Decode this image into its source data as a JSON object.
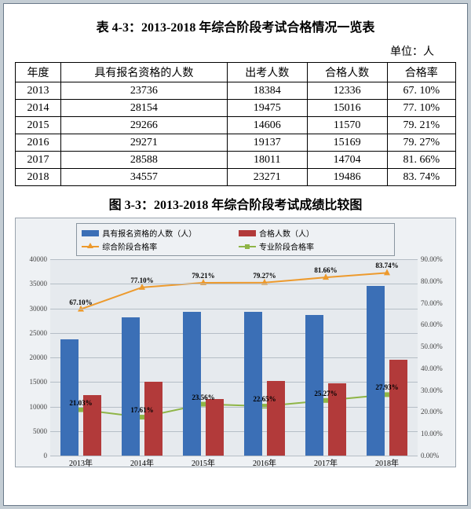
{
  "table_title": "表 4-3：2013-2018 年综合阶段考试合格情况一览表",
  "unit_label": "单位：人",
  "columns": [
    "年度",
    "具有报名资格的人数",
    "出考人数",
    "合格人数",
    "合格率"
  ],
  "rows": [
    [
      "2013",
      "23736",
      "18384",
      "12336",
      "67. 10%"
    ],
    [
      "2014",
      "28154",
      "19475",
      "15016",
      "77. 10%"
    ],
    [
      "2015",
      "29266",
      "14606",
      "11570",
      "79. 21%"
    ],
    [
      "2016",
      "29271",
      "19137",
      "15169",
      "79. 27%"
    ],
    [
      "2017",
      "28588",
      "18011",
      "14704",
      "81. 66%"
    ],
    [
      "2018",
      "34557",
      "23271",
      "19486",
      "83. 74%"
    ]
  ],
  "chart_title": "图 3-3：2013-2018 年综合阶段考试成绩比较图",
  "legend": {
    "bar1": "具有报名资格的人数（人）",
    "bar2": "合格人数（人）",
    "line1": "综合阶段合格率",
    "line2": "专业阶段合格率"
  },
  "colors": {
    "bar1": "#3b6fb6",
    "bar2": "#b23a3a",
    "line1": "#ed9a2d",
    "line1_stroke": "#ed9a2d",
    "line2": "#8fb547",
    "line2_stroke": "#8fb547",
    "chart_bg": "#eef1f4",
    "grid": "#b5bec6"
  },
  "axis": {
    "left_min": 0,
    "left_max": 40000,
    "left_step": 5000,
    "right_min": 0,
    "right_max": 90,
    "right_step": 10,
    "categories": [
      "2013年",
      "2014年",
      "2015年",
      "2016年",
      "2017年",
      "2018年"
    ]
  },
  "series": {
    "bar1_vals": [
      23736,
      28154,
      29266,
      29271,
      28588,
      34557
    ],
    "bar2_vals": [
      12336,
      15016,
      11570,
      15169,
      14704,
      19486
    ],
    "line1_pct": [
      67.1,
      77.1,
      79.21,
      79.27,
      81.66,
      83.74
    ],
    "line2_pct": [
      21.03,
      17.61,
      23.56,
      22.65,
      25.27,
      27.93
    ],
    "line1_labels": [
      "67.10%",
      "77.10%",
      "79.21%",
      "79.27%",
      "81.66%",
      "83.74%"
    ],
    "line2_labels": [
      "21.03%",
      "17.61%",
      "23.56%",
      "22.65%",
      "25.27%",
      "27.93%"
    ],
    "bar_width_pct": 5.0,
    "bar_gap_pct": 1.2
  }
}
